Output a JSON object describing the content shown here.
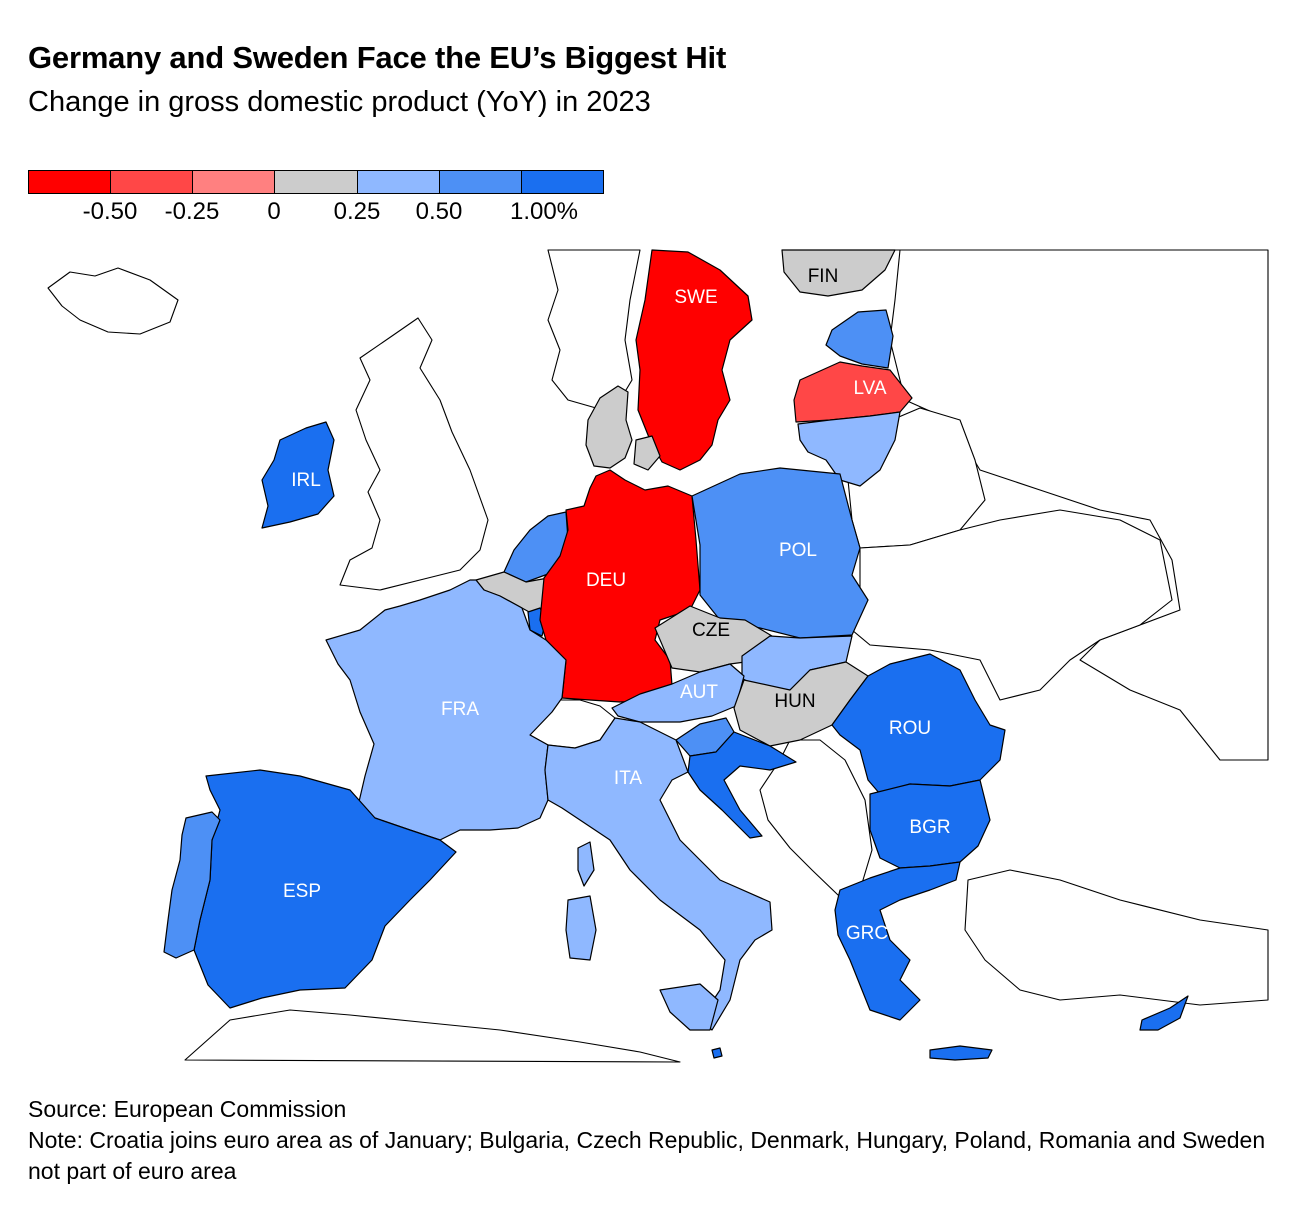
{
  "title": "Germany and Sweden Face the EU’s Biggest Hit",
  "subtitle": "Change in gross domestic product (YoY) in 2023",
  "legend": {
    "colors": [
      "#ff0000",
      "#ff4747",
      "#ff8080",
      "#cccccc",
      "#8fb8ff",
      "#4d90f5",
      "#1a6ff0"
    ],
    "ticks": [
      "-0.50",
      "-0.25",
      "0",
      "0.25",
      "0.50",
      "1.00%"
    ]
  },
  "map": {
    "countries": [
      {
        "code": "SWE",
        "label": "SWE",
        "color": "#ff0000",
        "label_color": "#ffffff"
      },
      {
        "code": "FIN",
        "label": "FIN",
        "color": "#cccccc",
        "label_color": "#000000"
      },
      {
        "code": "EST",
        "label": "",
        "color": "#4d90f5",
        "label_color": "#ffffff"
      },
      {
        "code": "LVA",
        "label": "LVA",
        "color": "#ff4747",
        "label_color": "#ffffff"
      },
      {
        "code": "LTU",
        "label": "",
        "color": "#8fb8ff",
        "label_color": "#ffffff"
      },
      {
        "code": "DNK",
        "label": "",
        "color": "#cccccc",
        "label_color": "#000000"
      },
      {
        "code": "IRL",
        "label": "IRL",
        "color": "#1a6ff0",
        "label_color": "#ffffff"
      },
      {
        "code": "NLD",
        "label": "",
        "color": "#4d90f5",
        "label_color": "#ffffff"
      },
      {
        "code": "BEL",
        "label": "",
        "color": "#cccccc",
        "label_color": "#000000"
      },
      {
        "code": "LUX",
        "label": "",
        "color": "#1a6ff0",
        "label_color": "#ffffff"
      },
      {
        "code": "DEU",
        "label": "DEU",
        "color": "#ff0000",
        "label_color": "#ffffff"
      },
      {
        "code": "POL",
        "label": "POL",
        "color": "#4d90f5",
        "label_color": "#ffffff"
      },
      {
        "code": "CZE",
        "label": "CZE",
        "color": "#cccccc",
        "label_color": "#000000"
      },
      {
        "code": "SVK",
        "label": "",
        "color": "#8fb8ff",
        "label_color": "#ffffff"
      },
      {
        "code": "AUT",
        "label": "AUT",
        "color": "#8fb8ff",
        "label_color": "#ffffff"
      },
      {
        "code": "HUN",
        "label": "HUN",
        "color": "#cccccc",
        "label_color": "#000000"
      },
      {
        "code": "FRA",
        "label": "FRA",
        "color": "#8fb8ff",
        "label_color": "#ffffff"
      },
      {
        "code": "ITA",
        "label": "ITA",
        "color": "#8fb8ff",
        "label_color": "#ffffff"
      },
      {
        "code": "SVN",
        "label": "",
        "color": "#4d90f5",
        "label_color": "#ffffff"
      },
      {
        "code": "HRV",
        "label": "",
        "color": "#1a6ff0",
        "label_color": "#ffffff"
      },
      {
        "code": "ROU",
        "label": "ROU",
        "color": "#1a6ff0",
        "label_color": "#ffffff"
      },
      {
        "code": "BGR",
        "label": "BGR",
        "color": "#1a6ff0",
        "label_color": "#ffffff"
      },
      {
        "code": "GRC",
        "label": "GRC",
        "color": "#1a6ff0",
        "label_color": "#ffffff"
      },
      {
        "code": "ESP",
        "label": "ESP",
        "color": "#1a6ff0",
        "label_color": "#ffffff"
      },
      {
        "code": "PRT",
        "label": "",
        "color": "#4d90f5",
        "label_color": "#ffffff"
      },
      {
        "code": "CYP",
        "label": "",
        "color": "#1a6ff0",
        "label_color": "#ffffff"
      },
      {
        "code": "MLT",
        "label": "",
        "color": "#1a6ff0",
        "label_color": "#ffffff"
      }
    ]
  },
  "footer": {
    "source": "Source: European Commission",
    "note": "Note: Croatia joins euro area as of January; Bulgaria, Czech Republic, Denmark, Hungary, Poland, Romania and Sweden not part of euro area"
  }
}
